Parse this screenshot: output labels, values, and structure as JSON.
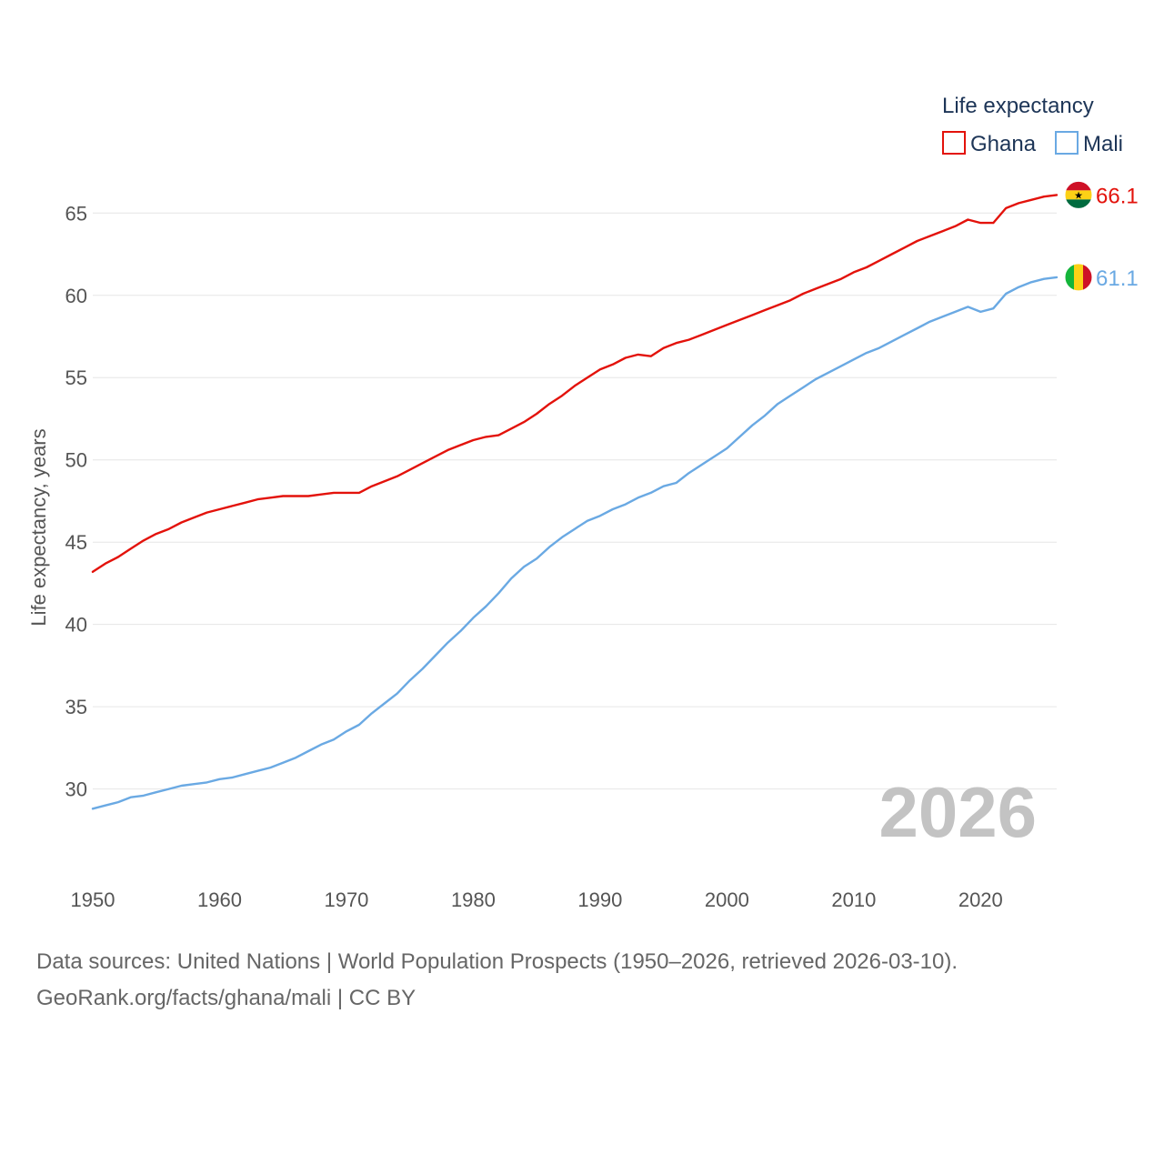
{
  "chart_data": {
    "type": "line",
    "title": "",
    "xlabel": "",
    "ylabel": "Life expectancy, years",
    "xlim": [
      1950,
      2026
    ],
    "ylim": [
      26,
      68
    ],
    "yticks": [
      30,
      35,
      40,
      45,
      50,
      55,
      60,
      65
    ],
    "xticks": [
      1950,
      1960,
      1970,
      1980,
      1990,
      2000,
      2010,
      2020
    ],
    "x": [
      1950,
      1951,
      1952,
      1953,
      1954,
      1955,
      1956,
      1957,
      1958,
      1959,
      1960,
      1961,
      1962,
      1963,
      1964,
      1965,
      1966,
      1967,
      1968,
      1969,
      1970,
      1971,
      1972,
      1973,
      1974,
      1975,
      1976,
      1977,
      1978,
      1979,
      1980,
      1981,
      1982,
      1983,
      1984,
      1985,
      1986,
      1987,
      1988,
      1989,
      1990,
      1991,
      1992,
      1993,
      1994,
      1995,
      1996,
      1997,
      1998,
      1999,
      2000,
      2001,
      2002,
      2003,
      2004,
      2005,
      2006,
      2007,
      2008,
      2009,
      2010,
      2011,
      2012,
      2013,
      2014,
      2015,
      2016,
      2017,
      2018,
      2019,
      2020,
      2021,
      2022,
      2023,
      2024,
      2025,
      2026
    ],
    "legend_title": "Life expectancy",
    "legend_position": "top-right",
    "watermark_year": "2026",
    "series": [
      {
        "name": "Ghana",
        "color": "#e3120b",
        "end_label": "66.1",
        "flag": "ghana",
        "values": [
          43.2,
          43.7,
          44.1,
          44.6,
          45.1,
          45.5,
          45.8,
          46.2,
          46.5,
          46.8,
          47.0,
          47.2,
          47.4,
          47.6,
          47.7,
          47.8,
          47.8,
          47.8,
          47.9,
          48.0,
          48.0,
          48.0,
          48.4,
          48.7,
          49.0,
          49.4,
          49.8,
          50.2,
          50.6,
          50.9,
          51.2,
          51.4,
          51.5,
          51.9,
          52.3,
          52.8,
          53.4,
          53.9,
          54.5,
          55.0,
          55.5,
          55.8,
          56.2,
          56.4,
          56.3,
          56.8,
          57.1,
          57.3,
          57.6,
          57.9,
          58.2,
          58.5,
          58.8,
          59.1,
          59.4,
          59.7,
          60.1,
          60.4,
          60.7,
          61.0,
          61.4,
          61.7,
          62.1,
          62.5,
          62.9,
          63.3,
          63.6,
          63.9,
          64.2,
          64.6,
          64.4,
          64.4,
          65.3,
          65.6,
          65.8,
          66.0,
          66.1
        ]
      },
      {
        "name": "Mali",
        "color": "#6aa9e3",
        "end_label": "61.1",
        "flag": "mali",
        "values": [
          28.8,
          29.0,
          29.2,
          29.5,
          29.6,
          29.8,
          30.0,
          30.2,
          30.3,
          30.4,
          30.6,
          30.7,
          30.9,
          31.1,
          31.3,
          31.6,
          31.9,
          32.3,
          32.7,
          33.0,
          33.5,
          33.9,
          34.6,
          35.2,
          35.8,
          36.6,
          37.3,
          38.1,
          38.9,
          39.6,
          40.4,
          41.1,
          41.9,
          42.8,
          43.5,
          44.0,
          44.7,
          45.3,
          45.8,
          46.3,
          46.6,
          47.0,
          47.3,
          47.7,
          48.0,
          48.4,
          48.6,
          49.2,
          49.7,
          50.2,
          50.7,
          51.4,
          52.1,
          52.7,
          53.4,
          53.9,
          54.4,
          54.9,
          55.3,
          55.7,
          56.1,
          56.5,
          56.8,
          57.2,
          57.6,
          58.0,
          58.4,
          58.7,
          59.0,
          59.3,
          59.0,
          59.2,
          60.1,
          60.5,
          60.8,
          61.0,
          61.1
        ]
      }
    ]
  },
  "footer": {
    "sources": "Data sources: United Nations | World Population Prospects (1950–2026, retrieved 2026-03-10).",
    "attribution": "GeoRank.org/facts/ghana/mali | CC BY"
  }
}
